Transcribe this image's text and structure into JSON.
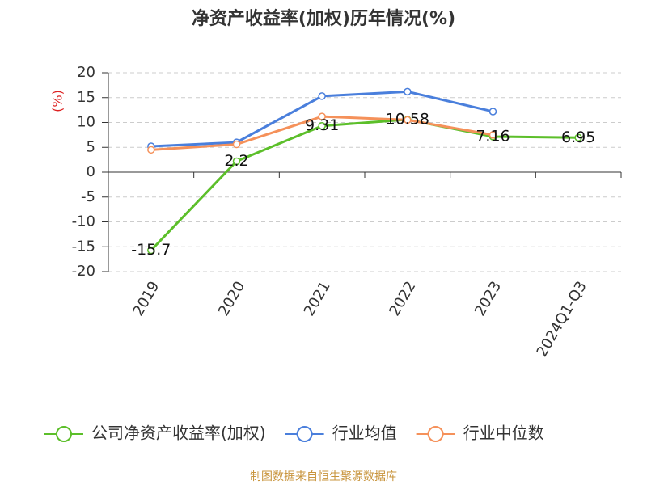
{
  "chart_data": {
    "type": "line",
    "title": "净资产收益率(加权)历年情况(%)",
    "y_label": "(%)",
    "source": "制图数据来自恒生聚源数据库",
    "categories": [
      "2019",
      "2020",
      "2021",
      "2022",
      "2023",
      "2024Q1-Q3"
    ],
    "series": [
      {
        "name": "公司净资产收益率(加权)",
        "color": "#5cbf2a",
        "values": [
          -15.7,
          2.2,
          9.31,
          10.58,
          7.16,
          6.95
        ],
        "show_labels": true
      },
      {
        "name": "行业均值",
        "color": "#4a7fdc",
        "values": [
          5.2,
          6.0,
          15.3,
          16.2,
          12.2,
          null
        ]
      },
      {
        "name": "行业中位数",
        "color": "#f5915a",
        "values": [
          4.5,
          5.6,
          11.2,
          10.5,
          7.5,
          null
        ]
      }
    ],
    "ylim": [
      -20,
      20
    ],
    "yticks": [
      -20,
      -15,
      -10,
      -5,
      0,
      5,
      10,
      15,
      20
    ],
    "grid": true
  }
}
